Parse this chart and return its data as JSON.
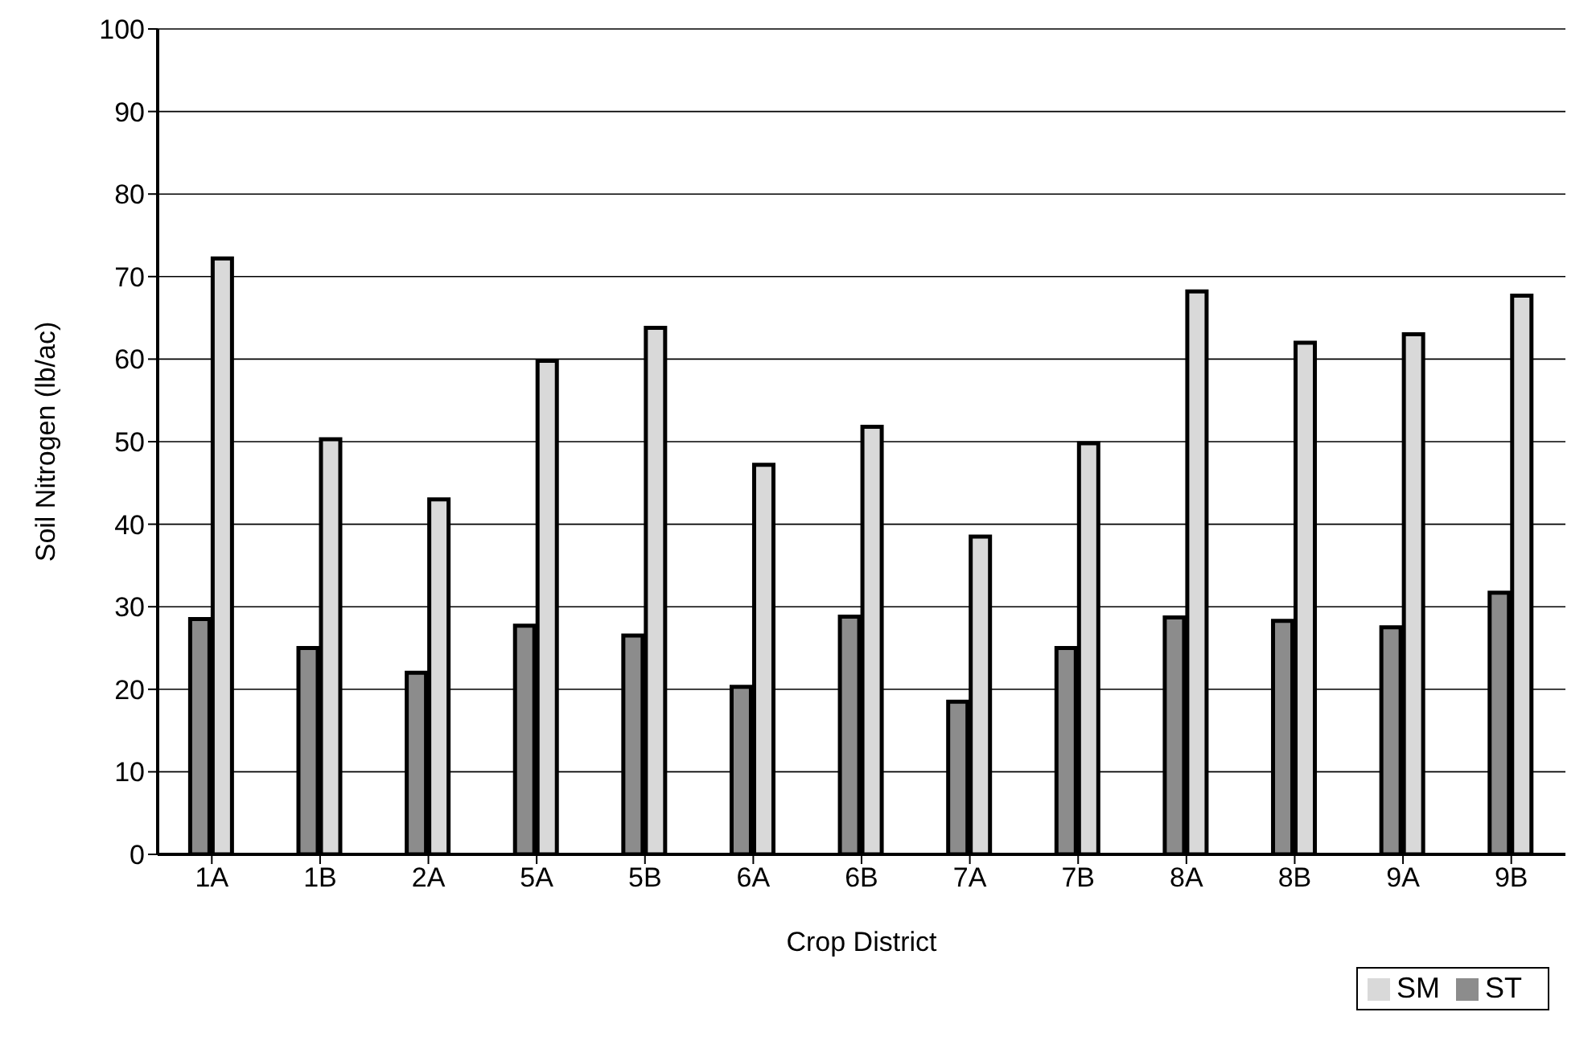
{
  "chart_data": {
    "type": "bar",
    "xlabel": "Crop District",
    "ylabel": "Soil Nitrogen (lb/ac)",
    "categories": [
      "1A",
      "1B",
      "2A",
      "5A",
      "5B",
      "6A",
      "6B",
      "7A",
      "7B",
      "8A",
      "8B",
      "9A",
      "9B"
    ],
    "series": [
      {
        "name": "ST",
        "color": "#8c8c8c",
        "values": [
          28.5,
          25,
          22,
          27.7,
          26.5,
          20.3,
          28.8,
          18.5,
          25,
          28.7,
          28.3,
          27.5,
          31.7
        ]
      },
      {
        "name": "SM",
        "color": "#d9d9d9",
        "values": [
          72.2,
          50.3,
          43,
          59.8,
          63.8,
          47.2,
          51.8,
          38.5,
          49.8,
          68.2,
          62,
          63,
          67.7
        ]
      }
    ],
    "ylim": [
      0,
      100
    ],
    "yticks": [
      0,
      10,
      20,
      30,
      40,
      50,
      60,
      70,
      80,
      90,
      100
    ],
    "grid": "y",
    "legend": "bottom right"
  }
}
